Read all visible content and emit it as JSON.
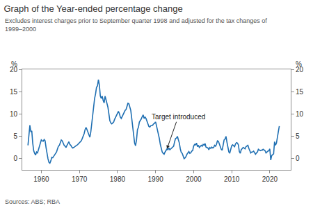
{
  "chart_data": {
    "type": "line",
    "title": "Graph of the Year-ended percentage change",
    "subtitle": "Excludes interest charges prior to September quarter 1998 and adjusted for the tax changes of 1999–2000",
    "source": "Sources: ABS; RBA",
    "y_label": "%",
    "y2_label": "%",
    "annotations": [
      {
        "text": "Target introduced",
        "x": 1993,
        "y": 2.2
      }
    ],
    "color": "#1f6fb2",
    "line_style": "solid",
    "grid": false,
    "xlim": [
      1955,
      2025.5
    ],
    "xticks": [
      1960,
      1970,
      1980,
      1990,
      2000,
      2010,
      2020
    ],
    "ylim": [
      -2.5,
      20
    ],
    "yticks": [
      0,
      5,
      10,
      15,
      20
    ],
    "y2lim": [
      -2.5,
      20
    ],
    "y2ticks": [
      0,
      5,
      10,
      15,
      20
    ],
    "x": [
      1956.5,
      1956.75,
      1957,
      1957.25,
      1957.5,
      1957.75,
      1958,
      1958.25,
      1958.5,
      1958.75,
      1959,
      1959.25,
      1959.5,
      1959.75,
      1960,
      1960.25,
      1960.5,
      1960.75,
      1961,
      1961.25,
      1961.5,
      1961.75,
      1962,
      1962.25,
      1962.5,
      1962.75,
      1963,
      1963.25,
      1963.5,
      1963.75,
      1964,
      1964.25,
      1964.5,
      1964.75,
      1965,
      1965.25,
      1965.5,
      1965.75,
      1966,
      1966.25,
      1966.5,
      1966.75,
      1967,
      1967.25,
      1967.5,
      1967.75,
      1968,
      1968.25,
      1968.5,
      1968.75,
      1969,
      1969.25,
      1969.5,
      1969.75,
      1970,
      1970.25,
      1970.5,
      1970.75,
      1971,
      1971.25,
      1971.5,
      1971.75,
      1972,
      1972.25,
      1972.5,
      1972.75,
      1973,
      1973.25,
      1973.5,
      1973.75,
      1974,
      1974.25,
      1974.5,
      1974.75,
      1975,
      1975.25,
      1975.5,
      1975.75,
      1976,
      1976.25,
      1976.5,
      1976.75,
      1977,
      1977.25,
      1977.5,
      1977.75,
      1978,
      1978.25,
      1978.5,
      1978.75,
      1979,
      1979.25,
      1979.5,
      1979.75,
      1980,
      1980.25,
      1980.5,
      1980.75,
      1981,
      1981.25,
      1981.5,
      1981.75,
      1982,
      1982.25,
      1982.5,
      1982.75,
      1983,
      1983.25,
      1983.5,
      1983.75,
      1984,
      1984.25,
      1984.5,
      1984.75,
      1985,
      1985.25,
      1985.5,
      1985.75,
      1986,
      1986.25,
      1986.5,
      1986.75,
      1987,
      1987.25,
      1987.5,
      1987.75,
      1988,
      1988.25,
      1988.5,
      1988.75,
      1989,
      1989.25,
      1989.5,
      1989.75,
      1990,
      1990.25,
      1990.5,
      1990.75,
      1991,
      1991.25,
      1991.5,
      1991.75,
      1992,
      1992.25,
      1992.5,
      1992.75,
      1993,
      1993.25,
      1993.5,
      1993.75,
      1994,
      1994.25,
      1994.5,
      1994.75,
      1995,
      1995.25,
      1995.5,
      1995.75,
      1996,
      1996.25,
      1996.5,
      1996.75,
      1997,
      1997.25,
      1997.5,
      1997.75,
      1998,
      1998.25,
      1998.5,
      1998.75,
      1999,
      1999.25,
      1999.5,
      1999.75,
      2000,
      2000.25,
      2000.5,
      2000.75,
      2001,
      2001.25,
      2001.5,
      2001.75,
      2002,
      2002.25,
      2002.5,
      2002.75,
      2003,
      2003.25,
      2003.5,
      2003.75,
      2004,
      2004.25,
      2004.5,
      2004.75,
      2005,
      2005.25,
      2005.5,
      2005.75,
      2006,
      2006.25,
      2006.5,
      2006.75,
      2007,
      2007.25,
      2007.5,
      2007.75,
      2008,
      2008.25,
      2008.5,
      2008.75,
      2009,
      2009.25,
      2009.5,
      2009.75,
      2010,
      2010.25,
      2010.5,
      2010.75,
      2011,
      2011.25,
      2011.5,
      2011.75,
      2012,
      2012.25,
      2012.5,
      2012.75,
      2013,
      2013.25,
      2013.5,
      2013.75,
      2014,
      2014.25,
      2014.5,
      2014.75,
      2015,
      2015.25,
      2015.5,
      2015.75,
      2016,
      2016.25,
      2016.5,
      2016.75,
      2017,
      2017.25,
      2017.5,
      2017.75,
      2018,
      2018.25,
      2018.5,
      2018.75,
      2019,
      2019.25,
      2019.5,
      2019.75,
      2020,
      2020.25,
      2020.5,
      2020.75,
      2021,
      2021.25,
      2021.5,
      2021.75,
      2022,
      2022.25,
      2022.5
    ],
    "values": [
      3.0,
      5.5,
      7.5,
      6.0,
      6.2,
      3.5,
      1.8,
      1.2,
      0.8,
      1.5,
      1.3,
      2.0,
      2.8,
      3.8,
      4.2,
      4.0,
      3.9,
      4.3,
      4.0,
      2.5,
      1.0,
      0.0,
      -0.8,
      -1.0,
      -0.5,
      0.3,
      0.2,
      0.5,
      0.8,
      1.0,
      1.5,
      2.2,
      2.8,
      3.0,
      3.8,
      4.2,
      4.0,
      3.5,
      3.0,
      2.8,
      2.5,
      3.0,
      3.5,
      3.8,
      3.2,
      3.0,
      2.6,
      2.4,
      2.5,
      2.7,
      2.8,
      3.0,
      3.1,
      3.3,
      3.6,
      3.7,
      4.0,
      4.5,
      5.0,
      5.6,
      6.5,
      7.0,
      6.5,
      6.0,
      5.3,
      4.8,
      6.0,
      8.0,
      10.5,
      12.5,
      13.5,
      14.5,
      16.0,
      16.3,
      17.7,
      16.5,
      14.0,
      13.5,
      14.0,
      13.0,
      12.5,
      14.0,
      13.2,
      12.2,
      11.5,
      10.0,
      8.5,
      8.0,
      7.8,
      8.0,
      8.2,
      8.8,
      9.2,
      9.8,
      10.2,
      10.6,
      10.1,
      9.3,
      9.0,
      9.5,
      9.8,
      10.5,
      10.8,
      11.0,
      11.8,
      12.4,
      12.3,
      11.5,
      10.8,
      9.0,
      6.8,
      4.5,
      3.5,
      2.9,
      4.2,
      6.5,
      7.0,
      8.2,
      8.5,
      8.9,
      9.4,
      9.8,
      9.0,
      9.3,
      9.0,
      8.3,
      7.5,
      7.2,
      7.1,
      7.4,
      7.4,
      7.5,
      7.8,
      7.9,
      8.3,
      7.3,
      6.3,
      5.8,
      4.5,
      3.2,
      2.5,
      1.5,
      1.2,
      1.0,
      1.5,
      1.9,
      2.2,
      2.0,
      2.4,
      2.0,
      2.2,
      2.3,
      2.5,
      2.8,
      3.8,
      4.5,
      4.6,
      5.0,
      4.2,
      3.5,
      2.2,
      1.4,
      1.2,
      0.5,
      0.0,
      0.2,
      0.5,
      1.0,
      1.3,
      1.6,
      1.2,
      1.3,
      1.7,
      1.8,
      2.8,
      3.2,
      3.1,
      3.5,
      2.7,
      3.0,
      2.5,
      2.7,
      3.0,
      2.8,
      3.2,
      3.0,
      3.4,
      2.6,
      2.5,
      2.4,
      2.0,
      2.5,
      2.3,
      2.6,
      2.4,
      2.5,
      3.0,
      2.8,
      3.2,
      4.0,
      3.9,
      3.3,
      2.4,
      2.1,
      1.9,
      3.0,
      4.2,
      4.4,
      5.0,
      3.7,
      2.4,
      1.5,
      1.3,
      2.1,
      2.9,
      3.1,
      2.8,
      2.7,
      3.3,
      3.6,
      3.5,
      3.1,
      1.6,
      1.2,
      2.0,
      2.2,
      2.5,
      2.4,
      2.2,
      2.7,
      2.9,
      3.0,
      2.3,
      1.7,
      1.3,
      1.5,
      1.5,
      1.7,
      1.3,
      1.0,
      1.3,
      1.5,
      2.1,
      1.9,
      1.8,
      1.9,
      1.9,
      2.1,
      1.9,
      1.8,
      1.3,
      1.6,
      1.7,
      1.8,
      2.2,
      -0.3,
      0.7,
      0.9,
      1.1,
      3.8,
      3.0,
      3.5,
      5.1,
      6.1,
      7.3
    ]
  }
}
